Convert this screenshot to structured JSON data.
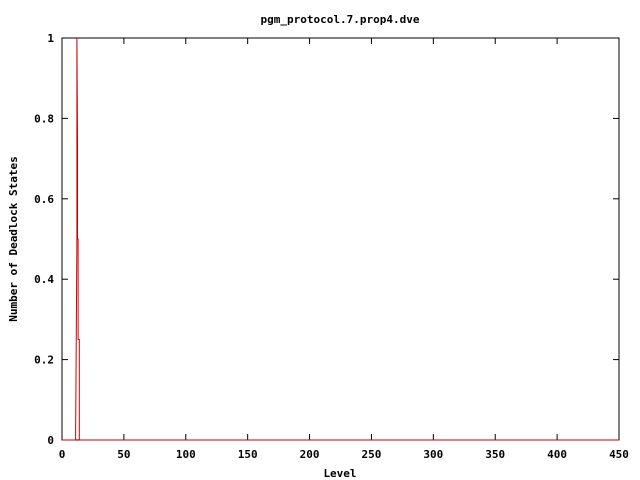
{
  "chart_data": {
    "type": "line",
    "title": "pgm_protocol.7.prop4.dve",
    "xlabel": "Level",
    "ylabel": "Number of Deadlock States",
    "xlim": [
      0,
      450
    ],
    "ylim": [
      0,
      1
    ],
    "xticks": [
      "0",
      "50",
      "100",
      "150",
      "200",
      "250",
      "300",
      "350",
      "400",
      "450"
    ],
    "yticks": [
      "0",
      "0.2",
      "0.4",
      "0.6",
      "0.8",
      "1"
    ],
    "grid": false,
    "series": [
      {
        "color": "#cc0000",
        "points": [
          [
            0,
            0
          ],
          [
            11,
            0
          ],
          [
            12,
            0.5
          ],
          [
            12,
            1
          ],
          [
            12.5,
            0.75
          ],
          [
            12.5,
            0.5
          ],
          [
            13,
            0.5
          ],
          [
            13,
            0.25
          ],
          [
            14,
            0.25
          ],
          [
            14,
            0
          ],
          [
            450,
            0
          ]
        ]
      }
    ]
  }
}
